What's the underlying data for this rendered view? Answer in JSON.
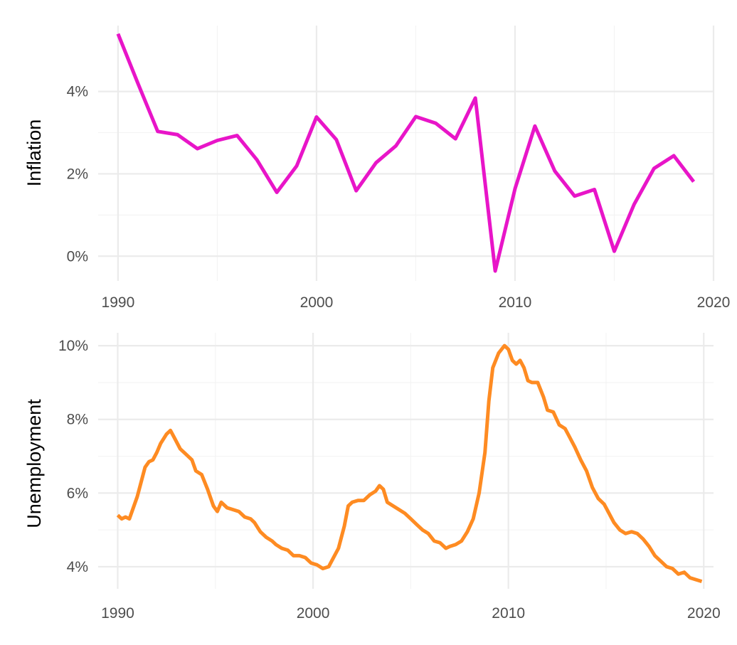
{
  "chart_data": [
    {
      "type": "line",
      "title": "",
      "xlabel": "",
      "ylabel": "Inflation",
      "color": "#e815c8",
      "xlim": [
        1989,
        2020
      ],
      "ylim": [
        -0.6,
        5.6
      ],
      "xticks": [
        1990,
        2000,
        2010,
        2020
      ],
      "xtick_labels": [
        "1990",
        "2000",
        "2010",
        "2020"
      ],
      "yticks": [
        0,
        2,
        4
      ],
      "ytick_labels": [
        "0%",
        "2%",
        "4%"
      ],
      "grid": true,
      "legend": "none",
      "x": [
        1990,
        1991,
        1992,
        1993,
        1994,
        1995,
        1996,
        1997,
        1998,
        1999,
        2000,
        2001,
        2002,
        2003,
        2004,
        2005,
        2006,
        2007,
        2008,
        2009,
        2010,
        2011,
        2012,
        2013,
        2014,
        2015,
        2016,
        2017,
        2018,
        2019
      ],
      "y": [
        5.4,
        4.2,
        3.03,
        2.95,
        2.61,
        2.81,
        2.93,
        2.34,
        1.55,
        2.19,
        3.38,
        2.83,
        1.59,
        2.27,
        2.68,
        3.39,
        3.23,
        2.85,
        3.84,
        -0.36,
        1.64,
        3.16,
        2.07,
        1.46,
        1.62,
        0.12,
        1.26,
        2.13,
        2.44,
        1.81
      ]
    },
    {
      "type": "line",
      "title": "",
      "xlabel": "",
      "ylabel": "Unemployment",
      "color": "#fe8b22",
      "xlim": [
        1989,
        2020.5
      ],
      "ylim": [
        3.4,
        10.35
      ],
      "xticks": [
        1990,
        2000,
        2010,
        2020
      ],
      "xtick_labels": [
        "1990",
        "2000",
        "2010",
        "2020"
      ],
      "yticks": [
        4,
        6,
        8,
        10
      ],
      "ytick_labels": [
        "4%",
        "6%",
        "8%",
        "10%"
      ],
      "grid": true,
      "legend": "none",
      "x": [
        1990.0,
        1990.2,
        1990.4,
        1990.6,
        1990.8,
        1991.0,
        1991.2,
        1991.4,
        1991.6,
        1991.8,
        1992.0,
        1992.2,
        1992.5,
        1992.7,
        1992.9,
        1993.2,
        1993.5,
        1993.8,
        1994.0,
        1994.3,
        1994.6,
        1994.9,
        1995.1,
        1995.3,
        1995.6,
        1995.9,
        1996.2,
        1996.5,
        1996.8,
        1997.0,
        1997.3,
        1997.6,
        1997.9,
        1998.1,
        1998.4,
        1998.7,
        1999.0,
        1999.3,
        1999.6,
        1999.9,
        2000.2,
        2000.5,
        2000.8,
        2001.0,
        2001.3,
        2001.6,
        2001.8,
        2002.0,
        2002.3,
        2002.6,
        2002.9,
        2003.2,
        2003.4,
        2003.6,
        2003.8,
        2004.1,
        2004.4,
        2004.7,
        2005.0,
        2005.3,
        2005.6,
        2005.9,
        2006.2,
        2006.5,
        2006.8,
        2007.0,
        2007.3,
        2007.6,
        2007.9,
        2008.2,
        2008.5,
        2008.8,
        2009.0,
        2009.2,
        2009.5,
        2009.8,
        2010.0,
        2010.2,
        2010.4,
        2010.6,
        2010.8,
        2011.0,
        2011.2,
        2011.5,
        2011.8,
        2012.0,
        2012.3,
        2012.6,
        2012.9,
        2013.1,
        2013.4,
        2013.7,
        2014.0,
        2014.3,
        2014.6,
        2014.9,
        2015.1,
        2015.4,
        2015.7,
        2016.0,
        2016.3,
        2016.6,
        2016.9,
        2017.2,
        2017.5,
        2017.8,
        2018.1,
        2018.4,
        2018.7,
        2019.0,
        2019.3,
        2019.6,
        2019.9
      ],
      "y": [
        5.4,
        5.3,
        5.35,
        5.3,
        5.6,
        5.9,
        6.3,
        6.7,
        6.85,
        6.9,
        7.1,
        7.35,
        7.6,
        7.7,
        7.5,
        7.2,
        7.05,
        6.9,
        6.6,
        6.5,
        6.1,
        5.65,
        5.5,
        5.75,
        5.6,
        5.55,
        5.5,
        5.35,
        5.3,
        5.2,
        4.95,
        4.8,
        4.7,
        4.6,
        4.5,
        4.45,
        4.3,
        4.3,
        4.25,
        4.1,
        4.05,
        3.95,
        4.0,
        4.2,
        4.5,
        5.1,
        5.65,
        5.75,
        5.8,
        5.8,
        5.95,
        6.05,
        6.2,
        6.1,
        5.75,
        5.65,
        5.55,
        5.45,
        5.3,
        5.15,
        5.0,
        4.9,
        4.7,
        4.65,
        4.5,
        4.55,
        4.6,
        4.7,
        4.95,
        5.3,
        6.0,
        7.1,
        8.5,
        9.4,
        9.8,
        10.0,
        9.9,
        9.6,
        9.5,
        9.6,
        9.4,
        9.05,
        9.0,
        9.0,
        8.6,
        8.25,
        8.2,
        7.85,
        7.75,
        7.55,
        7.25,
        6.9,
        6.6,
        6.15,
        5.85,
        5.7,
        5.5,
        5.2,
        5.0,
        4.9,
        4.95,
        4.9,
        4.75,
        4.55,
        4.3,
        4.15,
        4.0,
        3.95,
        3.8,
        3.85,
        3.7,
        3.65,
        3.6
      ]
    }
  ]
}
